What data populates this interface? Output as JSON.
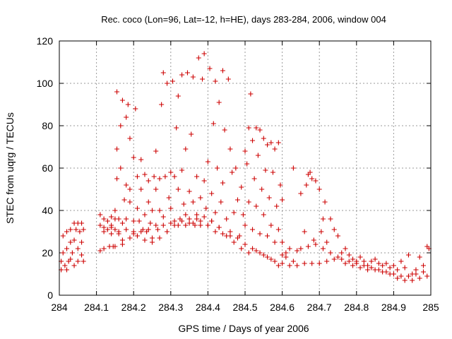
{
  "chart_data": {
    "type": "scatter",
    "title": "Rec. coco (Lon=96, Lat=-12, h=HE), days 283-284, 2006, window 004",
    "xlabel": "GPS time / Days of year 2006",
    "ylabel": "STEC from uqrg / TECUs",
    "xlim": [
      284,
      285
    ],
    "ylim": [
      0,
      120
    ],
    "xticks": [
      284,
      284.1,
      284.2,
      284.3,
      284.4,
      284.5,
      284.6,
      284.7,
      284.8,
      284.9,
      285
    ],
    "xtick_labels": [
      "284",
      "284.1",
      "284.2",
      "284.3",
      "284.4",
      "284.5",
      "284.6",
      "284.7",
      "284.8",
      "284.9",
      "285"
    ],
    "yticks": [
      0,
      20,
      40,
      60,
      80,
      100,
      120
    ],
    "ytick_labels": [
      "0",
      "20",
      "40",
      "60",
      "80",
      "100",
      "120"
    ],
    "grid": true,
    "marker": "+",
    "color": "#cc0000",
    "series": [
      {
        "points": [
          [
            284.005,
            16
          ],
          [
            284.005,
            12
          ],
          [
            284.01,
            28
          ],
          [
            284.01,
            20
          ],
          [
            284.015,
            14
          ],
          [
            284.02,
            30
          ],
          [
            284.02,
            22
          ],
          [
            284.02,
            12
          ],
          [
            284.025,
            16
          ],
          [
            284.03,
            31
          ],
          [
            284.03,
            25
          ],
          [
            284.03,
            17
          ],
          [
            284.035,
            20
          ],
          [
            284.04,
            34
          ],
          [
            284.04,
            26
          ],
          [
            284.04,
            14
          ],
          [
            284.045,
            31
          ],
          [
            284.05,
            34
          ],
          [
            284.05,
            22
          ],
          [
            284.05,
            16
          ],
          [
            284.055,
            30
          ],
          [
            284.06,
            34
          ],
          [
            284.06,
            25
          ],
          [
            284.06,
            19
          ],
          [
            284.065,
            31
          ],
          [
            284.065,
            16
          ]
        ]
      },
      {
        "points": [
          [
            284.11,
            38
          ],
          [
            284.11,
            33
          ],
          [
            284.11,
            21
          ],
          [
            284.12,
            36
          ],
          [
            284.12,
            30
          ],
          [
            284.12,
            22
          ],
          [
            284.13,
            35
          ],
          [
            284.13,
            31
          ],
          [
            284.135,
            23
          ],
          [
            284.14,
            37
          ],
          [
            284.14,
            33
          ],
          [
            284.14,
            29
          ],
          [
            284.145,
            23
          ],
          [
            284.15,
            40
          ],
          [
            284.15,
            36
          ],
          [
            284.15,
            31
          ],
          [
            284.155,
            96
          ],
          [
            284.155,
            69
          ],
          [
            284.155,
            55
          ],
          [
            284.16,
            36
          ],
          [
            284.16,
            29
          ],
          [
            284.165,
            80
          ],
          [
            284.165,
            60
          ],
          [
            284.17,
            92
          ],
          [
            284.17,
            34
          ],
          [
            284.17,
            26
          ],
          [
            284.175,
            45
          ],
          [
            284.18,
            84
          ],
          [
            284.18,
            52
          ],
          [
            284.18,
            36
          ],
          [
            284.185,
            90
          ],
          [
            284.19,
            74
          ],
          [
            284.19,
            50
          ],
          [
            284.19,
            44
          ],
          [
            284.2,
            35
          ],
          [
            284.2,
            29
          ],
          [
            284.2,
            65
          ],
          [
            284.205,
            88
          ],
          [
            284.21,
            41
          ],
          [
            284.21,
            56
          ],
          [
            284.215,
            35
          ],
          [
            284.22,
            64
          ],
          [
            284.22,
            50
          ],
          [
            284.225,
            31
          ],
          [
            284.23,
            57
          ],
          [
            284.23,
            38
          ],
          [
            284.235,
            30
          ],
          [
            284.24,
            44
          ],
          [
            284.24,
            54
          ],
          [
            284.245,
            34
          ],
          [
            284.25,
            40
          ],
          [
            284.25,
            27
          ],
          [
            284.255,
            56
          ],
          [
            284.26,
            68
          ],
          [
            284.26,
            50
          ],
          [
            284.265,
            31
          ],
          [
            284.27,
            55
          ],
          [
            284.27,
            40
          ],
          [
            284.275,
            90
          ],
          [
            284.28,
            105
          ],
          [
            284.28,
            37
          ],
          [
            284.285,
            56
          ],
          [
            284.29,
            100
          ],
          [
            284.29,
            30
          ],
          [
            284.295,
            46
          ],
          [
            284.3,
            58
          ],
          [
            284.3,
            41
          ],
          [
            284.305,
            101
          ],
          [
            284.31,
            35
          ],
          [
            284.31,
            56
          ],
          [
            284.315,
            79
          ],
          [
            284.32,
            94
          ],
          [
            284.32,
            50
          ],
          [
            284.325,
            36
          ],
          [
            284.33,
            104
          ],
          [
            284.33,
            59
          ],
          [
            284.335,
            43
          ],
          [
            284.34,
            69
          ],
          [
            284.34,
            38
          ],
          [
            284.345,
            105
          ],
          [
            284.35,
            49
          ],
          [
            284.35,
            34
          ],
          [
            284.355,
            76
          ],
          [
            284.36,
            103
          ],
          [
            284.36,
            44
          ],
          [
            284.365,
            33
          ],
          [
            284.37,
            56
          ],
          [
            284.37,
            38
          ],
          [
            284.375,
            112
          ],
          [
            284.38,
            46
          ],
          [
            284.38,
            35
          ],
          [
            284.385,
            102
          ],
          [
            284.39,
            114
          ],
          [
            284.39,
            54
          ],
          [
            284.395,
            41
          ],
          [
            284.4,
            63
          ],
          [
            284.4,
            33
          ],
          [
            284.405,
            107
          ],
          [
            284.41,
            48
          ],
          [
            284.41,
            35
          ],
          [
            284.415,
            81
          ],
          [
            284.42,
            101
          ],
          [
            284.42,
            39
          ],
          [
            284.425,
            60
          ],
          [
            284.43,
            91
          ],
          [
            284.43,
            32
          ],
          [
            284.435,
            44
          ],
          [
            284.44,
            106
          ],
          [
            284.44,
            53
          ],
          [
            284.445,
            78
          ],
          [
            284.45,
            36
          ],
          [
            284.455,
            102
          ],
          [
            284.46,
            69
          ],
          [
            284.46,
            30
          ],
          [
            284.465,
            58
          ],
          [
            284.47,
            39
          ],
          [
            284.475,
            60
          ],
          [
            284.48,
            45
          ],
          [
            284.485,
            28
          ],
          [
            284.49,
            51
          ],
          [
            284.495,
            38
          ],
          [
            284.5,
            68
          ],
          [
            284.5,
            33
          ],
          [
            284.505,
            62
          ],
          [
            284.51,
            79
          ],
          [
            284.51,
            44
          ],
          [
            284.515,
            95
          ],
          [
            284.52,
            73
          ],
          [
            284.52,
            31
          ],
          [
            284.525,
            55
          ],
          [
            284.53,
            79
          ],
          [
            284.53,
            42
          ],
          [
            284.535,
            66
          ],
          [
            284.54,
            78
          ],
          [
            284.54,
            29
          ],
          [
            284.545,
            50
          ],
          [
            284.55,
            74
          ],
          [
            284.55,
            38
          ],
          [
            284.555,
            59
          ],
          [
            284.56,
            71
          ],
          [
            284.56,
            28
          ],
          [
            284.565,
            46
          ],
          [
            284.57,
            72
          ],
          [
            284.57,
            33
          ],
          [
            284.575,
            58
          ],
          [
            284.58,
            69
          ],
          [
            284.58,
            25
          ],
          [
            284.585,
            42
          ],
          [
            284.59,
            72
          ],
          [
            284.59,
            31
          ],
          [
            284.595,
            52
          ],
          [
            284.6,
            45
          ],
          [
            284.6,
            25
          ]
        ]
      },
      {
        "points": [
          [
            284.12,
            32
          ],
          [
            284.14,
            32
          ],
          [
            284.16,
            30
          ],
          [
            284.18,
            31
          ],
          [
            284.2,
            30
          ],
          [
            284.22,
            30
          ],
          [
            284.24,
            31
          ],
          [
            284.26,
            33
          ],
          [
            284.28,
            33
          ],
          [
            284.3,
            34
          ],
          [
            284.32,
            33
          ],
          [
            284.34,
            33
          ],
          [
            284.36,
            34
          ],
          [
            284.38,
            33
          ],
          [
            284.4,
            33
          ],
          [
            284.42,
            30
          ],
          [
            284.44,
            29
          ],
          [
            284.46,
            28
          ],
          [
            284.48,
            27
          ],
          [
            284.5,
            24
          ],
          [
            284.52,
            22
          ],
          [
            284.54,
            20
          ],
          [
            284.56,
            18
          ],
          [
            284.58,
            16
          ],
          [
            284.6,
            15
          ],
          [
            284.62,
            14
          ],
          [
            284.64,
            14
          ],
          [
            284.66,
            15
          ],
          [
            284.68,
            15
          ],
          [
            284.7,
            15
          ],
          [
            284.72,
            16
          ],
          [
            284.74,
            17
          ],
          [
            284.76,
            17
          ],
          [
            284.78,
            16
          ],
          [
            284.8,
            15
          ],
          [
            284.82,
            14
          ],
          [
            284.84,
            13
          ],
          [
            284.86,
            12
          ],
          [
            284.88,
            11
          ],
          [
            284.9,
            10
          ],
          [
            284.92,
            9
          ],
          [
            284.94,
            9
          ],
          [
            284.96,
            10
          ],
          [
            284.98,
            11
          ]
        ]
      },
      {
        "points": [
          [
            284.15,
            23
          ],
          [
            284.17,
            24
          ],
          [
            284.19,
            27
          ],
          [
            284.21,
            28
          ],
          [
            284.23,
            26
          ],
          [
            284.25,
            25
          ],
          [
            284.27,
            27
          ],
          [
            284.29,
            30
          ],
          [
            284.31,
            33
          ],
          [
            284.33,
            35
          ],
          [
            284.35,
            36
          ],
          [
            284.37,
            36
          ],
          [
            284.39,
            37
          ],
          [
            284.41,
            35
          ],
          [
            284.43,
            32
          ],
          [
            284.45,
            28
          ],
          [
            284.47,
            25
          ],
          [
            284.49,
            22
          ],
          [
            284.51,
            20
          ],
          [
            284.53,
            21
          ],
          [
            284.55,
            19
          ],
          [
            284.57,
            17
          ],
          [
            284.59,
            14
          ],
          [
            284.61,
            18
          ],
          [
            284.63,
            16
          ],
          [
            284.65,
            22
          ],
          [
            284.67,
            23
          ],
          [
            284.69,
            24
          ],
          [
            284.71,
            22
          ],
          [
            284.73,
            20
          ],
          [
            284.75,
            18
          ],
          [
            284.77,
            15
          ],
          [
            284.79,
            14
          ],
          [
            284.81,
            13
          ],
          [
            284.83,
            12
          ],
          [
            284.85,
            12
          ],
          [
            284.87,
            11
          ],
          [
            284.89,
            10
          ],
          [
            284.91,
            8
          ],
          [
            284.93,
            7
          ],
          [
            284.95,
            7
          ],
          [
            284.97,
            8
          ],
          [
            284.99,
            9
          ]
        ]
      },
      {
        "points": [
          [
            284.6,
            19
          ],
          [
            284.61,
            20
          ],
          [
            284.62,
            22
          ],
          [
            284.63,
            60
          ],
          [
            284.64,
            21
          ],
          [
            284.65,
            48
          ],
          [
            284.66,
            30
          ],
          [
            284.665,
            52
          ],
          [
            284.67,
            57
          ],
          [
            284.675,
            58
          ],
          [
            284.68,
            55
          ],
          [
            284.685,
            26
          ],
          [
            284.69,
            54
          ],
          [
            284.7,
            50
          ],
          [
            284.705,
            30
          ],
          [
            284.71,
            36
          ],
          [
            284.715,
            44
          ],
          [
            284.72,
            25
          ],
          [
            284.73,
            36
          ],
          [
            284.74,
            31
          ],
          [
            284.75,
            28
          ],
          [
            284.76,
            20
          ],
          [
            284.77,
            22
          ],
          [
            284.78,
            19
          ],
          [
            284.79,
            17
          ],
          [
            284.8,
            16
          ],
          [
            284.81,
            18
          ],
          [
            284.82,
            16
          ],
          [
            284.83,
            14
          ],
          [
            284.84,
            16
          ],
          [
            284.85,
            17
          ],
          [
            284.86,
            15
          ],
          [
            284.87,
            14
          ],
          [
            284.88,
            15
          ],
          [
            284.89,
            13
          ],
          [
            284.9,
            14
          ],
          [
            284.91,
            12
          ],
          [
            284.92,
            16
          ],
          [
            284.93,
            13
          ],
          [
            284.94,
            19
          ],
          [
            284.95,
            10
          ],
          [
            284.96,
            12
          ],
          [
            284.97,
            18
          ],
          [
            284.98,
            14
          ],
          [
            284.99,
            23
          ],
          [
            284.995,
            22
          ]
        ]
      }
    ]
  }
}
